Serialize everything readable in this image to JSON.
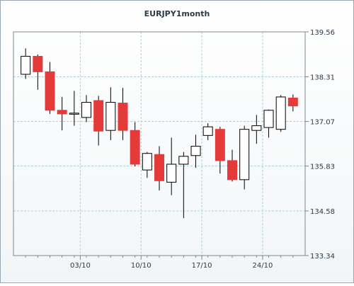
{
  "chart_data": {
    "type": "candlestick",
    "title": "EURJPY1month",
    "xlabel": "",
    "ylabel": "",
    "ylim": [
      133.34,
      139.56
    ],
    "y_ticks": [
      139.56,
      138.31,
      137.07,
      135.83,
      134.58,
      133.34
    ],
    "y_tick_labels": [
      "139.56",
      "138.31",
      "137.07",
      "135.83",
      "134.58",
      "133.34"
    ],
    "x_tick_labels": [
      "03/10",
      "10/10",
      "17/10",
      "24/10"
    ],
    "x_tick_positions": [
      4.5,
      9.5,
      14.5,
      19.5
    ],
    "grid": true,
    "colors": {
      "bullish": "#ffffff",
      "bearish": "#e53a3a",
      "outline": "#000000",
      "grid": "#a9d2d8"
    },
    "candles": [
      {
        "open": 138.38,
        "high": 139.1,
        "low": 138.25,
        "close": 138.88
      },
      {
        "open": 138.88,
        "high": 138.93,
        "low": 137.95,
        "close": 138.45
      },
      {
        "open": 138.45,
        "high": 138.72,
        "low": 137.28,
        "close": 137.38
      },
      {
        "open": 137.38,
        "high": 137.75,
        "low": 136.82,
        "close": 137.28
      },
      {
        "open": 137.28,
        "high": 137.92,
        "low": 136.95,
        "close": 137.3
      },
      {
        "open": 137.18,
        "high": 137.8,
        "low": 137.05,
        "close": 137.6
      },
      {
        "open": 137.65,
        "high": 137.78,
        "low": 136.4,
        "close": 136.8
      },
      {
        "open": 136.82,
        "high": 138.02,
        "low": 136.55,
        "close": 137.6
      },
      {
        "open": 137.58,
        "high": 138.0,
        "low": 136.55,
        "close": 136.82
      },
      {
        "open": 136.82,
        "high": 137.05,
        "low": 135.82,
        "close": 135.88
      },
      {
        "open": 135.72,
        "high": 136.22,
        "low": 135.5,
        "close": 136.18
      },
      {
        "open": 136.15,
        "high": 136.38,
        "low": 135.15,
        "close": 135.42
      },
      {
        "open": 135.38,
        "high": 136.62,
        "low": 135.02,
        "close": 135.88
      },
      {
        "open": 135.88,
        "high": 136.22,
        "low": 134.38,
        "close": 136.1
      },
      {
        "open": 136.12,
        "high": 136.7,
        "low": 135.78,
        "close": 136.38
      },
      {
        "open": 136.68,
        "high": 137.02,
        "low": 136.55,
        "close": 136.92
      },
      {
        "open": 136.85,
        "high": 136.92,
        "low": 135.62,
        "close": 135.98
      },
      {
        "open": 135.98,
        "high": 136.28,
        "low": 135.4,
        "close": 135.45
      },
      {
        "open": 135.45,
        "high": 136.95,
        "low": 135.18,
        "close": 136.85
      },
      {
        "open": 136.82,
        "high": 137.25,
        "low": 136.45,
        "close": 136.95
      },
      {
        "open": 136.9,
        "high": 137.4,
        "low": 136.62,
        "close": 137.38
      },
      {
        "open": 136.85,
        "high": 137.8,
        "low": 136.78,
        "close": 137.75
      },
      {
        "open": 137.72,
        "high": 137.82,
        "low": 137.35,
        "close": 137.5
      }
    ]
  }
}
